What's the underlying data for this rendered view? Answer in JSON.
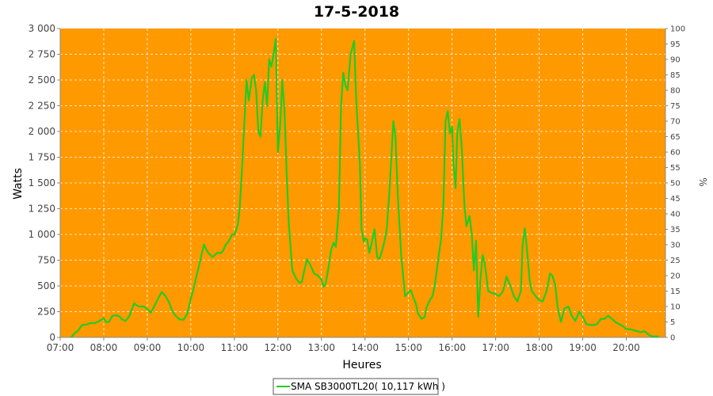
{
  "chart_data": {
    "type": "line",
    "title": "17-5-2018",
    "xlabel": "Heures",
    "ylabel": "Watts",
    "y2label": "%",
    "xlim": [
      7.0,
      20.9
    ],
    "ylim": [
      0,
      3000
    ],
    "y2lim": [
      0,
      100
    ],
    "x_ticks": [
      "07:00",
      "08:00",
      "09:00",
      "10:00",
      "11:00",
      "12:00",
      "13:00",
      "14:00",
      "15:00",
      "16:00",
      "17:00",
      "18:00",
      "19:00",
      "20:00"
    ],
    "y_ticks": [
      "0",
      "250",
      "500",
      "750",
      "1 000",
      "1 250",
      "1 500",
      "1 750",
      "2 000",
      "2 250",
      "2 500",
      "2 750",
      "3 000"
    ],
    "y2_ticks": [
      "0",
      "5",
      "10",
      "15",
      "20",
      "25",
      "30",
      "35",
      "40",
      "45",
      "50",
      "55",
      "60",
      "65",
      "70",
      "75",
      "80",
      "85",
      "90",
      "95",
      "100"
    ],
    "grid": true,
    "background": "#ff9900",
    "legend_position": "bottom",
    "series": [
      {
        "name": "SMA SB3000TL20( 10,117 kWh )",
        "color": "#22cc22",
        "x": [
          7.25,
          7.33,
          7.42,
          7.5,
          7.6,
          7.7,
          7.8,
          7.9,
          8.0,
          8.05,
          8.12,
          8.2,
          8.3,
          8.37,
          8.42,
          8.5,
          8.58,
          8.7,
          8.8,
          8.92,
          9.0,
          9.08,
          9.17,
          9.25,
          9.33,
          9.42,
          9.5,
          9.58,
          9.67,
          9.75,
          9.83,
          9.92,
          10.0,
          10.05,
          10.1,
          10.2,
          10.3,
          10.4,
          10.5,
          10.6,
          10.7,
          10.75,
          10.8,
          10.85,
          10.9,
          10.95,
          11.0,
          11.03,
          11.08,
          11.12,
          11.17,
          11.22,
          11.28,
          11.33,
          11.4,
          11.45,
          11.5,
          11.55,
          11.6,
          11.65,
          11.7,
          11.75,
          11.8,
          11.85,
          11.9,
          11.95,
          12.0,
          12.05,
          12.1,
          12.15,
          12.2,
          12.25,
          12.33,
          12.42,
          12.5,
          12.55,
          12.6,
          12.67,
          12.75,
          12.83,
          12.92,
          13.0,
          13.05,
          13.1,
          13.17,
          13.22,
          13.28,
          13.33,
          13.4,
          13.45,
          13.5,
          13.55,
          13.6,
          13.67,
          13.75,
          13.8,
          13.88,
          13.92,
          13.97,
          14.0,
          14.05,
          14.1,
          14.17,
          14.22,
          14.28,
          14.33,
          14.4,
          14.45,
          14.5,
          14.55,
          14.6,
          14.65,
          14.7,
          14.75,
          14.83,
          14.92,
          15.0,
          15.05,
          15.1,
          15.17,
          15.22,
          15.3,
          15.37,
          15.42,
          15.5,
          15.55,
          15.6,
          15.67,
          15.72,
          15.75,
          15.8,
          15.85,
          15.9,
          15.95,
          16.0,
          16.03,
          16.08,
          16.12,
          16.17,
          16.22,
          16.28,
          16.33,
          16.4,
          16.45,
          16.5,
          16.55,
          16.6,
          16.65,
          16.7,
          16.75,
          16.83,
          16.92,
          17.0,
          17.08,
          17.17,
          17.25,
          17.33,
          17.42,
          17.5,
          17.58,
          17.62,
          17.67,
          17.72,
          17.78,
          17.83,
          17.92,
          18.0,
          18.08,
          18.17,
          18.25,
          18.3,
          18.37,
          18.42,
          18.5,
          18.58,
          18.67,
          18.75,
          18.83,
          18.92,
          19.0,
          19.08,
          19.17,
          19.25,
          19.33,
          19.42,
          19.5,
          19.58,
          19.67,
          19.75,
          19.83,
          19.92,
          20.0,
          20.08,
          20.17,
          20.25,
          20.33,
          20.42,
          20.5,
          20.58,
          20.67,
          20.75
        ],
        "y": [
          0,
          40,
          70,
          120,
          125,
          140,
          140,
          160,
          185,
          150,
          150,
          210,
          215,
          200,
          175,
          160,
          200,
          330,
          300,
          300,
          275,
          240,
          310,
          380,
          440,
          400,
          340,
          250,
          200,
          175,
          170,
          230,
          380,
          450,
          540,
          720,
          900,
          820,
          780,
          820,
          820,
          850,
          900,
          920,
          960,
          1000,
          1000,
          1030,
          1100,
          1250,
          1600,
          2000,
          2500,
          2300,
          2520,
          2550,
          2400,
          2000,
          1950,
          2300,
          2480,
          2250,
          2700,
          2630,
          2750,
          2900,
          1800,
          2050,
          2500,
          2200,
          1600,
          1100,
          650,
          570,
          530,
          540,
          640,
          760,
          700,
          620,
          600,
          560,
          490,
          530,
          700,
          850,
          920,
          880,
          1250,
          2250,
          2570,
          2450,
          2400,
          2750,
          2880,
          2280,
          1700,
          1050,
          930,
          960,
          950,
          820,
          950,
          1050,
          780,
          760,
          850,
          940,
          1050,
          1350,
          1700,
          2100,
          1950,
          1400,
          800,
          400,
          440,
          460,
          400,
          320,
          230,
          180,
          200,
          300,
          370,
          400,
          500,
          720,
          880,
          960,
          1300,
          2100,
          2200,
          1980,
          2050,
          1700,
          1450,
          2000,
          2120,
          1850,
          1300,
          1080,
          1180,
          1010,
          650,
          940,
          200,
          560,
          800,
          720,
          450,
          430,
          420,
          400,
          450,
          590,
          510,
          400,
          350,
          450,
          900,
          1060,
          850,
          560,
          450,
          400,
          360,
          350,
          450,
          620,
          600,
          510,
          300,
          150,
          280,
          300,
          210,
          160,
          250,
          200,
          130,
          120,
          120,
          130,
          180,
          180,
          210,
          180,
          150,
          130,
          110,
          80,
          80,
          70,
          60,
          50,
          60,
          30,
          10,
          10,
          10
        ]
      }
    ]
  }
}
